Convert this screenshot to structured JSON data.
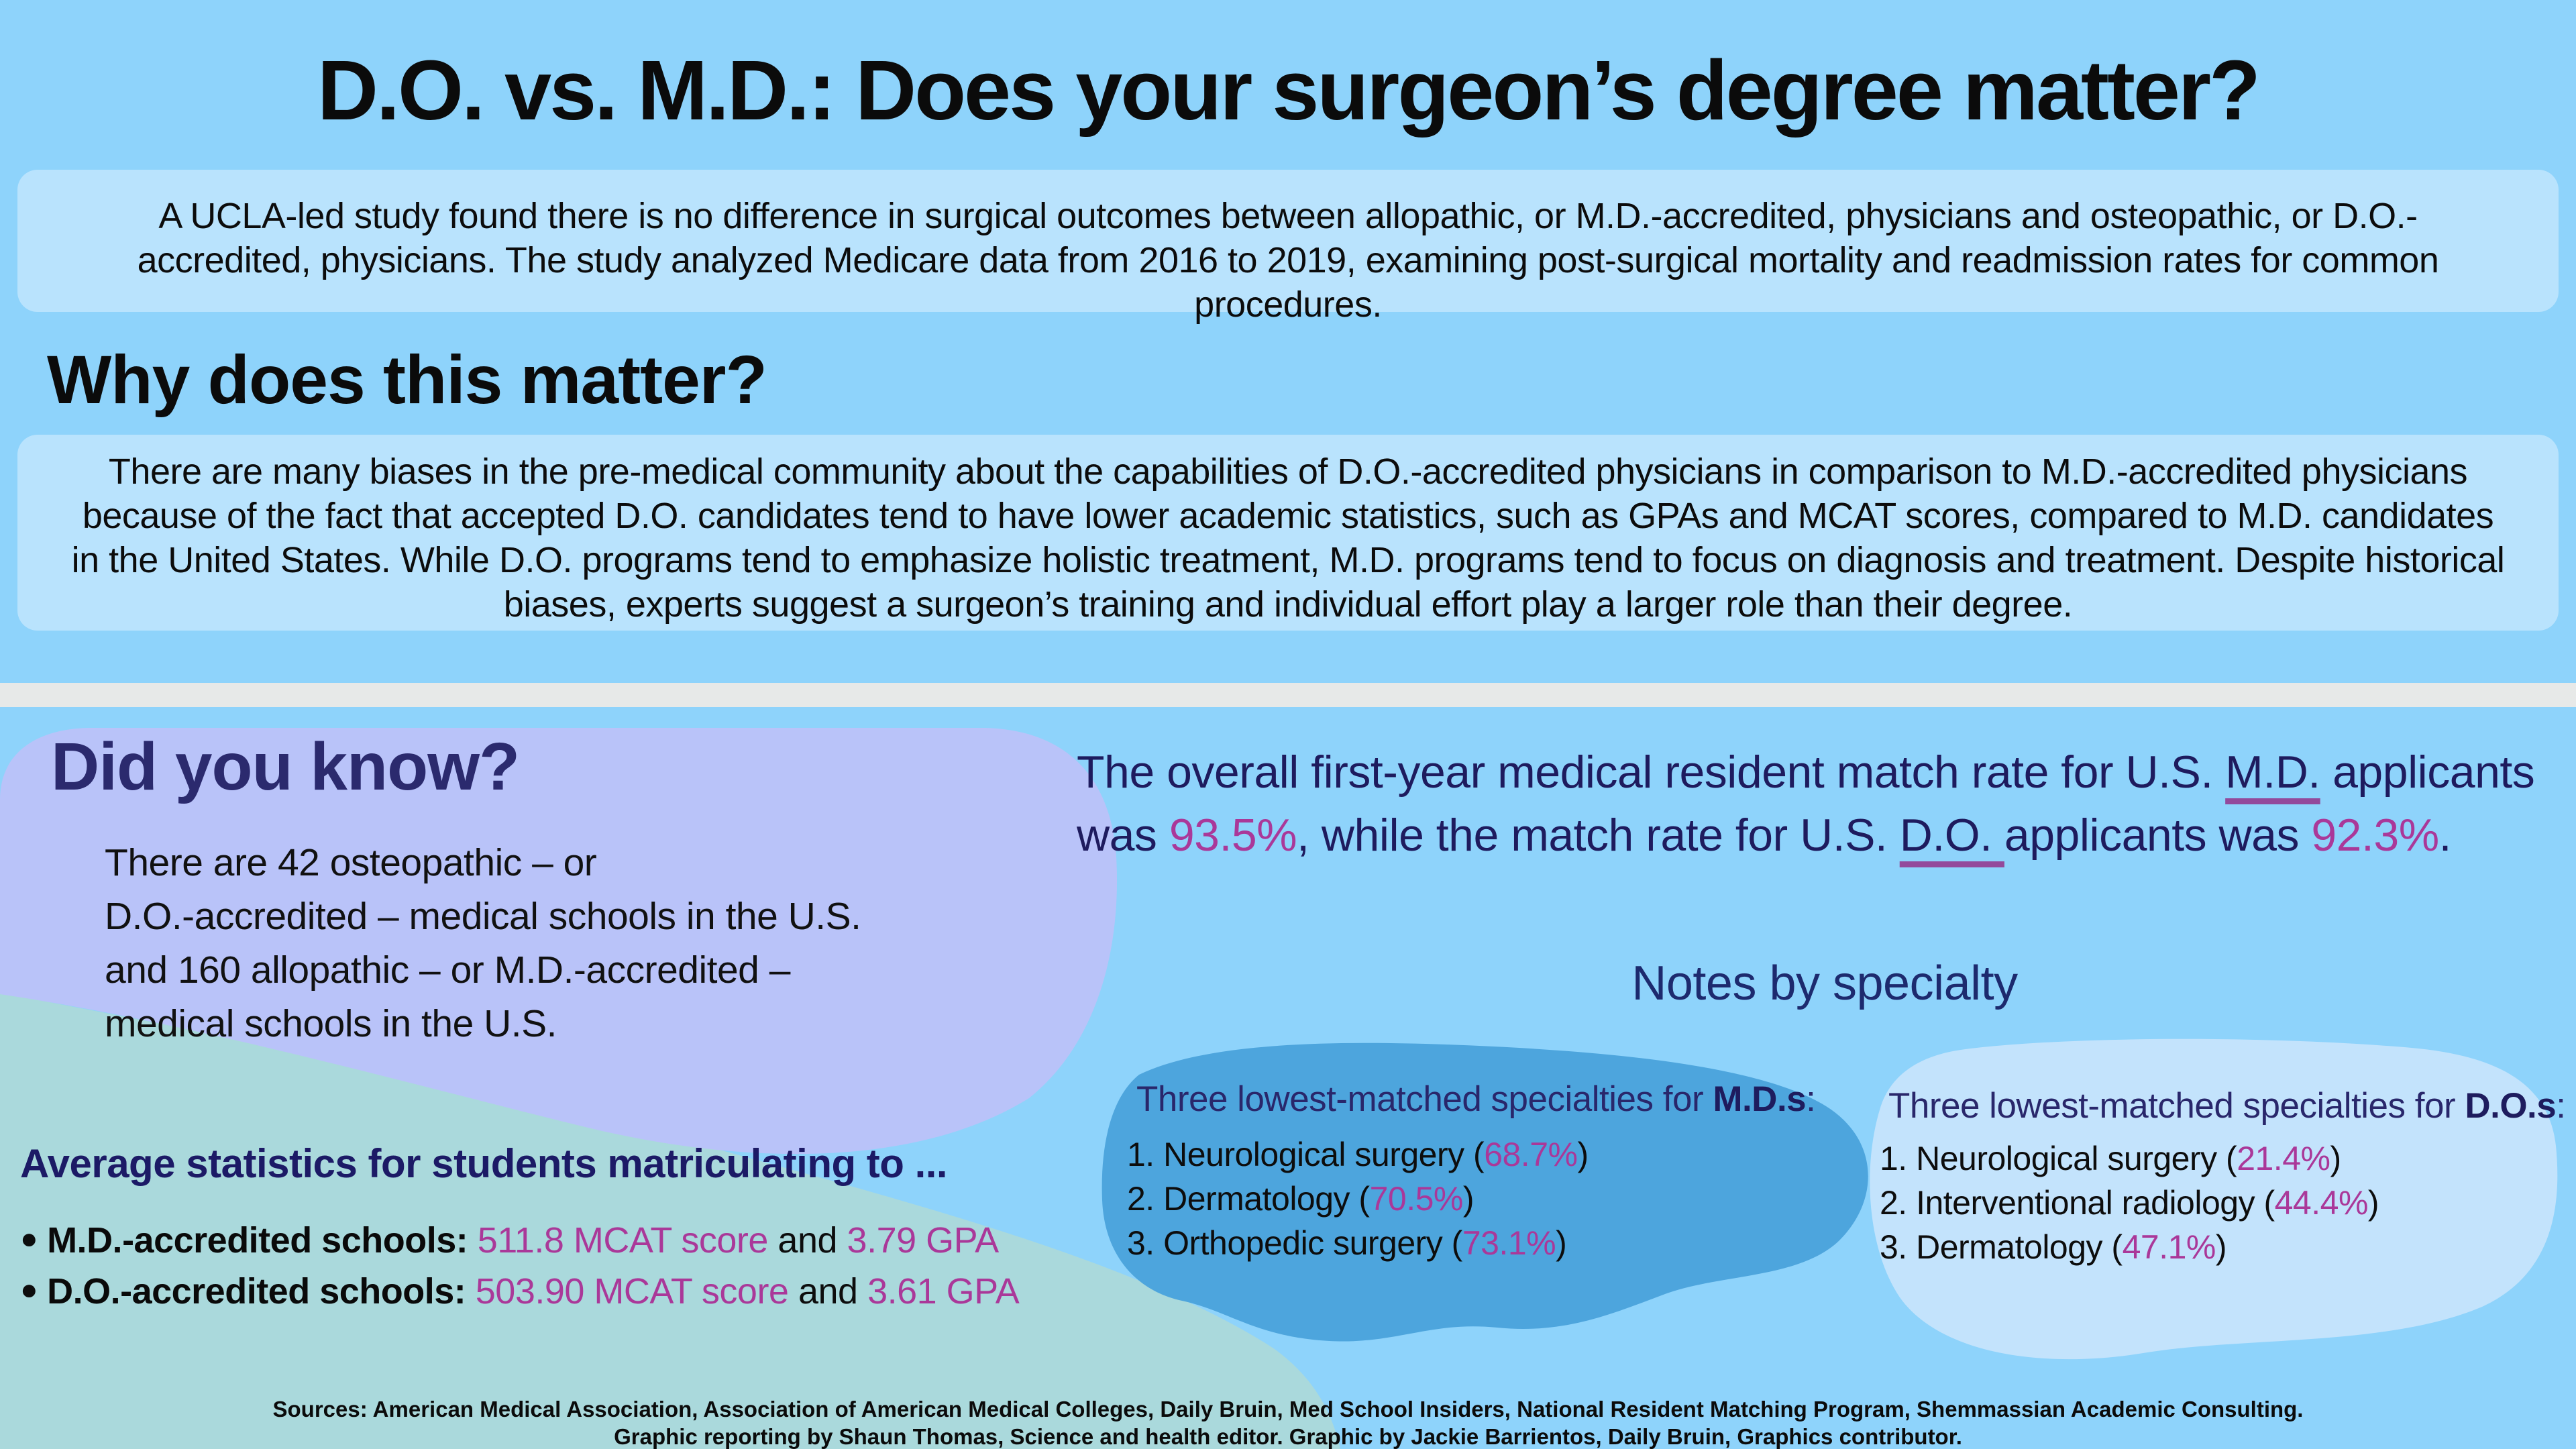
{
  "title": "D.O. vs. M.D.: Does your surgeon’s degree matter?",
  "intro": "A UCLA-led study found there is no difference in surgical outcomes between allopathic, or M.D.-accredited, physicians and osteopathic, or D.O.-accredited, physicians. The study analyzed Medicare data from 2016 to 2019, examining post-surgical mortality and readmission rates for common procedures.",
  "why": {
    "heading": "Why does this matter?",
    "body": "There are many biases in the pre-medical community about the capabilities of D.O.-accredited physicians in comparison to M.D.-accredited physicians because of the fact that accepted D.O. candidates tend to have lower academic statistics, such as GPAs and MCAT scores, compared to M.D. candidates in the United States. While D.O. programs tend to emphasize holistic treatment, M.D. programs tend to focus on diagnosis and treatment. Despite historical biases, experts suggest a surgeon’s training and individual effort play a larger role than their degree."
  },
  "did_you_know": {
    "heading": "Did you know?",
    "body": "There are 42 osteopathic –  or\nD.O.-accredited – medical schools in the U.S.\nand 160 allopathic – or M.D.-accredited –\nmedical schools in the U.S."
  },
  "match_rate": {
    "segments": [
      {
        "t": "The overall first-year medical resident match rate for U.S. "
      },
      {
        "t": "M.D.",
        "s": "uline"
      },
      {
        "t": " applicants was "
      },
      {
        "t": "93.5%",
        "s": "accent"
      },
      {
        "t": ", while the match rate for U.S. "
      },
      {
        "t": "D.O. ",
        "s": "uline"
      },
      {
        "t": "applicants was "
      },
      {
        "t": "92.3%",
        "s": "accent"
      },
      {
        "t": "."
      }
    ],
    "md_rate": "93.5%",
    "do_rate": "92.3%"
  },
  "notes": {
    "heading": "Notes by specialty",
    "md": {
      "title_segments": [
        {
          "t": "Three lowest-matched specialties for "
        },
        {
          "t": "M.D.s",
          "s": "heavy"
        },
        {
          "t": ":"
        }
      ],
      "items": [
        {
          "segments": [
            {
              "t": "1. Neurological surgery ("
            },
            {
              "t": "68.7%",
              "s": "accent"
            },
            {
              "t": ")"
            }
          ],
          "name": "Neurological surgery",
          "pct": "68.7%"
        },
        {
          "segments": [
            {
              "t": "2. Dermatology ("
            },
            {
              "t": "70.5%",
              "s": "accent"
            },
            {
              "t": ")"
            }
          ],
          "name": "Dermatology",
          "pct": "70.5%"
        },
        {
          "segments": [
            {
              "t": "3. Orthopedic surgery ("
            },
            {
              "t": "73.1%",
              "s": "accent"
            },
            {
              "t": ")"
            }
          ],
          "name": "Orthopedic surgery",
          "pct": "73.1%"
        }
      ]
    },
    "do": {
      "title_segments": [
        {
          "t": "Three lowest-matched specialties for "
        },
        {
          "t": "D.O.s",
          "s": "heavy"
        },
        {
          "t": ":"
        }
      ],
      "items": [
        {
          "segments": [
            {
              "t": "1. Neurological surgery ("
            },
            {
              "t": "21.4%",
              "s": "accent"
            },
            {
              "t": ")"
            }
          ],
          "name": "Neurological surgery",
          "pct": "21.4%"
        },
        {
          "segments": [
            {
              "t": "2. Interventional radiology ("
            },
            {
              "t": "44.4%",
              "s": "accent"
            },
            {
              "t": ")"
            }
          ],
          "name": "Interventional radiology",
          "pct": "44.4%"
        },
        {
          "segments": [
            {
              "t": "3. Dermatology ("
            },
            {
              "t": "47.1%",
              "s": "accent"
            },
            {
              "t": ")"
            }
          ],
          "name": "Dermatology",
          "pct": "47.1%"
        }
      ]
    }
  },
  "avg_stats": {
    "heading": "Average statistics for students matriculating to ...",
    "bullet_glyph": "●",
    "bullets": [
      {
        "segments": [
          {
            "t": "M.D.-accredited schools: ",
            "s": "blabel"
          },
          {
            "t": "511.8 MCAT score",
            "s": "accent"
          },
          {
            "t": " and "
          },
          {
            "t": "3.79 GPA",
            "s": "accent"
          }
        ],
        "label": "M.D.-accredited schools",
        "mcat": "511.8",
        "gpa": "3.79"
      },
      {
        "segments": [
          {
            "t": "D.O.-accredited schools: ",
            "s": "blabel"
          },
          {
            "t": "503.90 MCAT score",
            "s": "accent"
          },
          {
            "t": " and "
          },
          {
            "t": "3.61 GPA",
            "s": "accent"
          }
        ],
        "label": "D.O.-accredited schools",
        "mcat": "503.90",
        "gpa": "3.61"
      }
    ]
  },
  "sources": {
    "line1": "Sources: American Medical Association, Association of American Medical Colleges, Daily Bruin, Med School Insiders, National Resident Matching Program, Shemmassian Academic Consulting.",
    "line2": "Graphic reporting by Shaun Thomas, Science and health editor. Graphic by Jackie Barrientos, Daily Bruin, Graphics contributor."
  },
  "colors": {
    "sky_blue_bg": "#8ed3fb",
    "light_blue_box": "#b9e3fd",
    "divider_gray": "#e7e9e8",
    "periwinkle_panel": "#b9c3f9",
    "teal_area": "#aad9dc",
    "md_blob_blue": "#4da5dd",
    "do_blob_pale_blue": "#c3e3fc",
    "navy_text": "#1e1b5e",
    "magenta_accent": "#aa3899",
    "underline_purple": "#93499b"
  }
}
